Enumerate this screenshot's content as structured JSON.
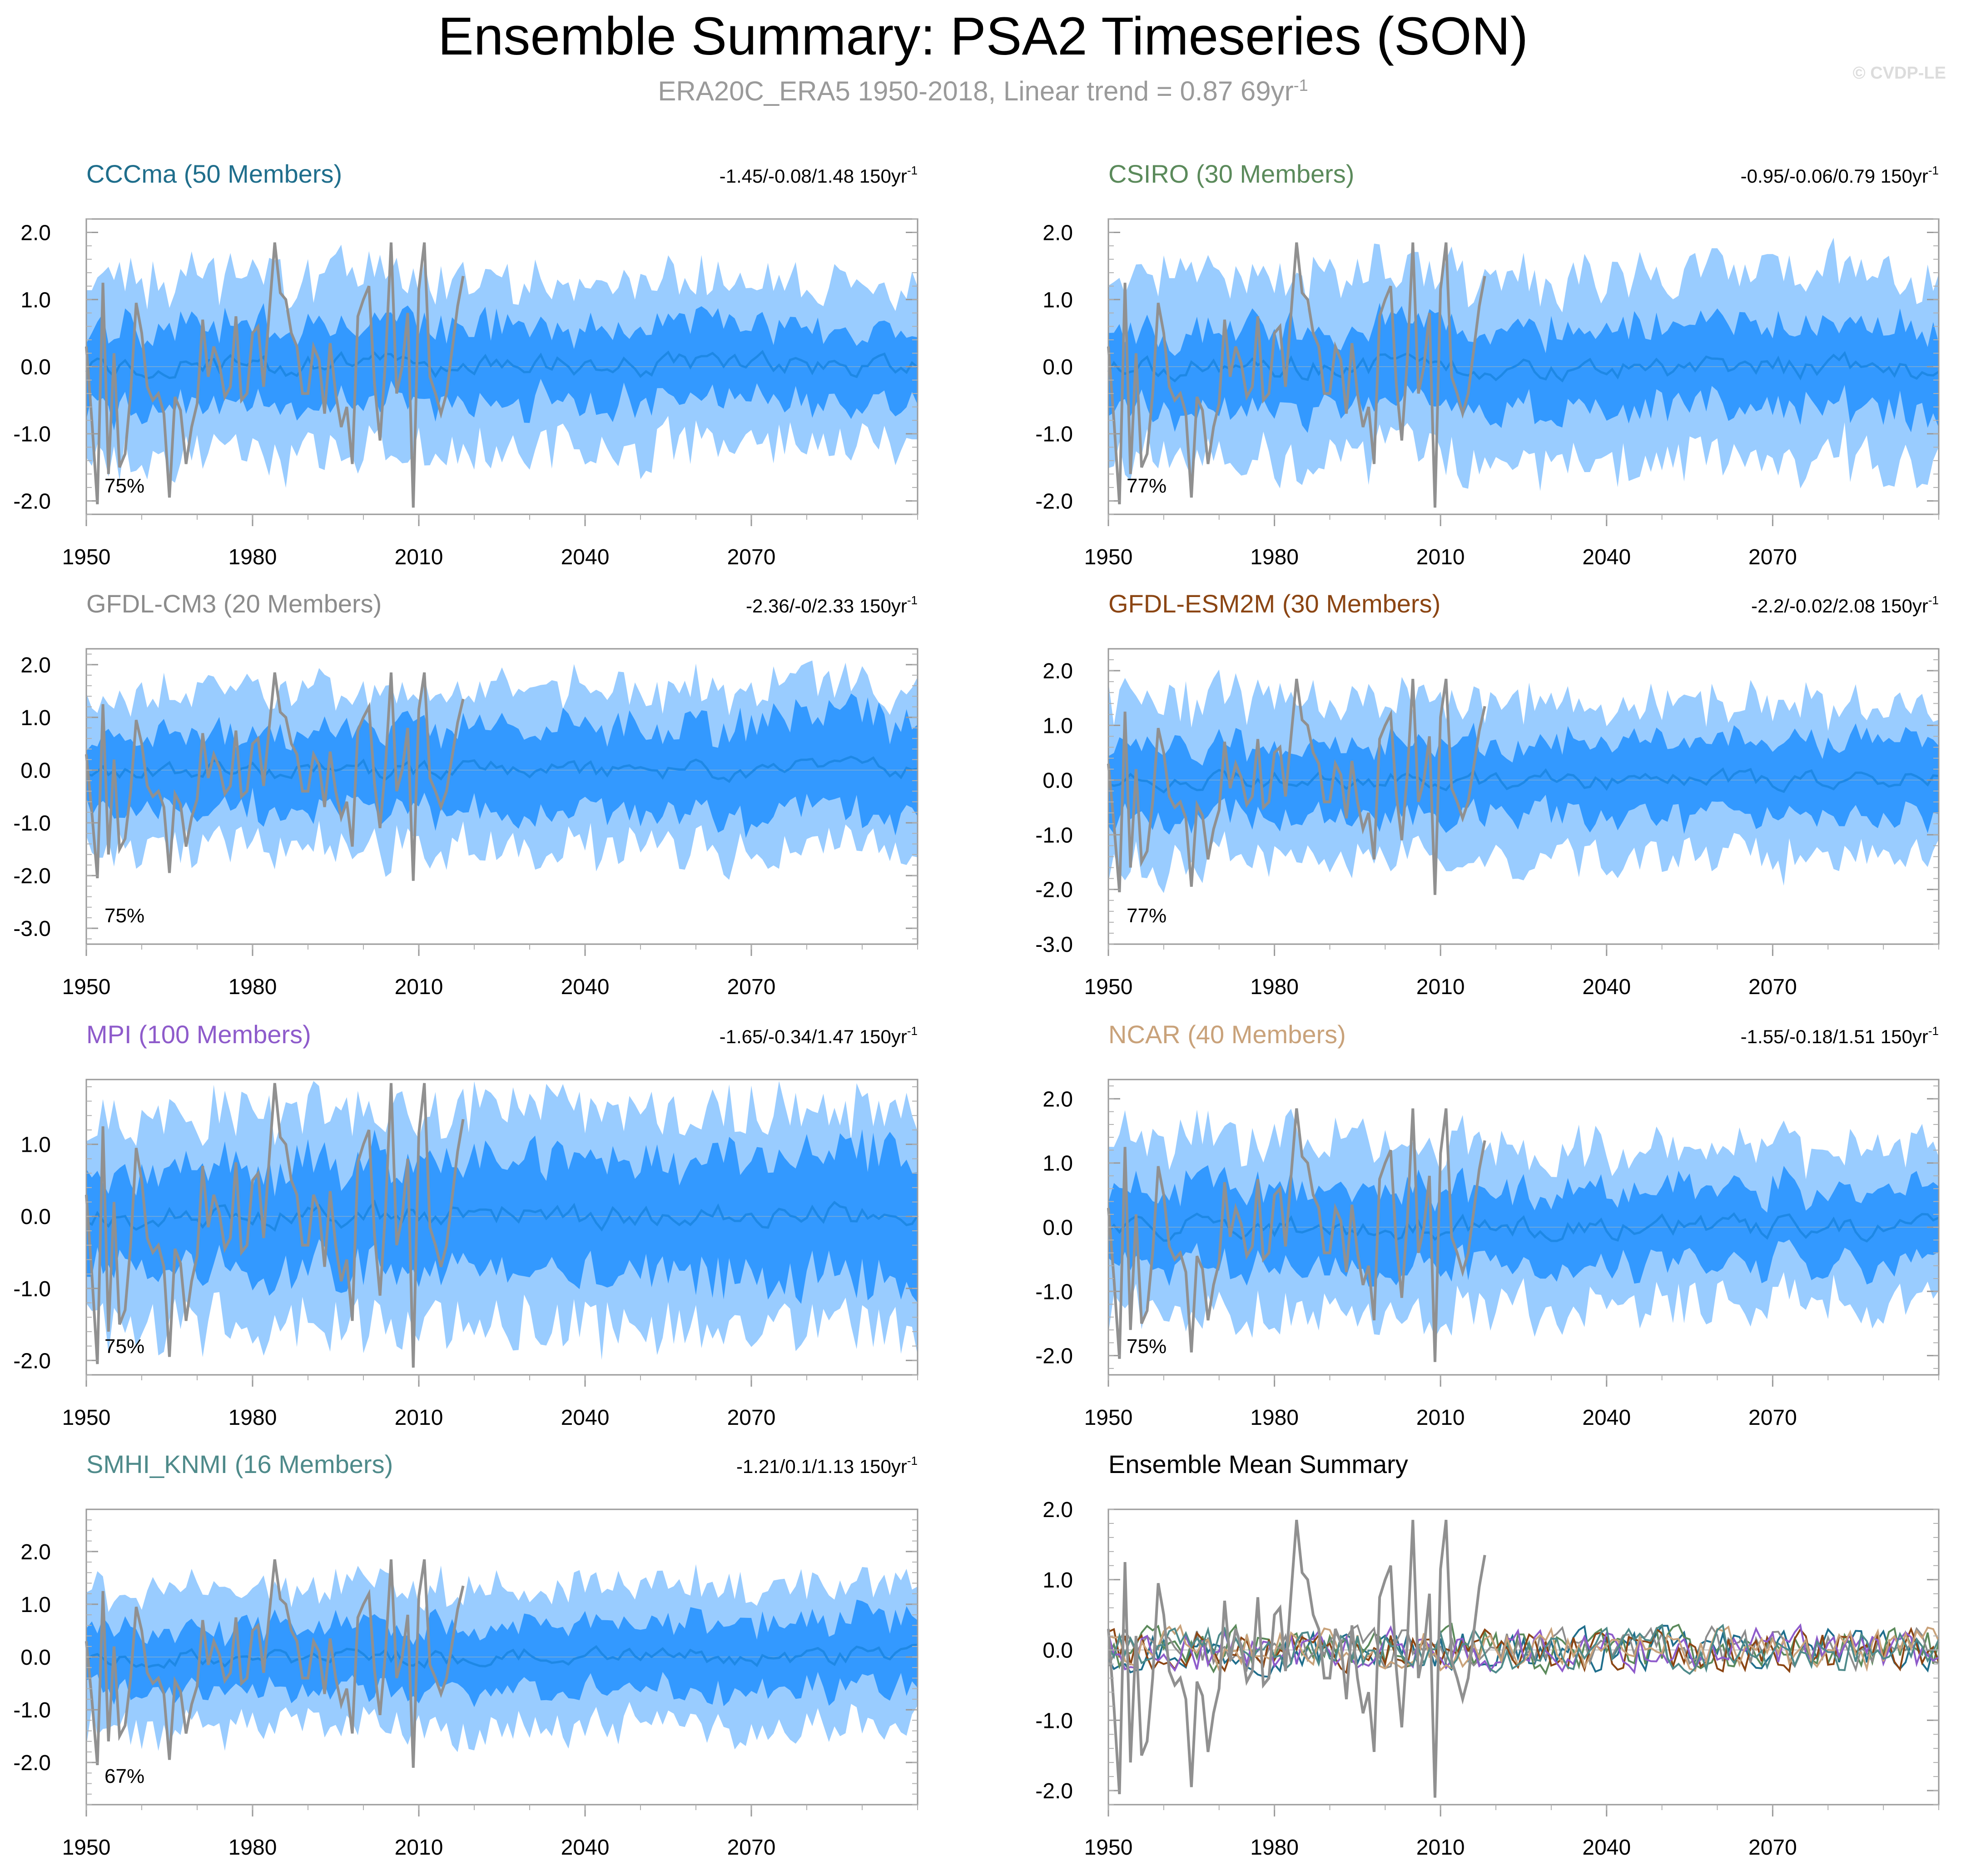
{
  "header": {
    "title": "Ensemble Summary: PSA2 Timeseries (SON)",
    "subtitle_main": "ERA20C_ERA5 1950-2018, Linear trend = 0.87 69yr",
    "subtitle_exp": "-1",
    "watermark": "© CVDP-LE"
  },
  "colors": {
    "outer_band": "#99CCFF",
    "inner_band": "#3399FF",
    "ensemble_mean": "#1E88E5",
    "observations": "#909090"
  },
  "chart_data": [
    {
      "id": "cccma",
      "type": "area",
      "title": "CCCma (50 Members)",
      "title_color": "#1F6E8C",
      "trend": "-1.45/-0.08/1.48 150yr",
      "trend_exp": "-1",
      "percent": "75%",
      "yrange": [
        -2.2,
        2.2
      ],
      "yticks": [
        -2,
        -1,
        0,
        1,
        2
      ],
      "ytick_labels": [
        "-2.0",
        "-1.0",
        "0.0",
        "1.0",
        "2.0"
      ],
      "xrange": [
        1950,
        2100
      ],
      "xticks": [
        1950,
        1980,
        2010,
        2040,
        2070
      ],
      "band_outer": [
        1.35,
        1.1
      ],
      "band_inner": [
        0.65,
        0.55
      ],
      "seed": 11
    },
    {
      "id": "csiro",
      "type": "area",
      "title": "CSIRO (30 Members)",
      "title_color": "#5B8A5B",
      "trend": "-0.95/-0.06/0.79 150yr",
      "trend_exp": "-1",
      "percent": "77%",
      "yrange": [
        -2.2,
        2.2
      ],
      "yticks": [
        -2,
        -1,
        0,
        1,
        2
      ],
      "ytick_labels": [
        "-2.0",
        "-1.0",
        "0.0",
        "1.0",
        "2.0"
      ],
      "xrange": [
        1950,
        2100
      ],
      "xticks": [
        1950,
        1980,
        2010,
        2040,
        2070
      ],
      "band_outer": [
        1.35,
        1.35
      ],
      "band_inner": [
        0.6,
        0.65
      ],
      "seed": 23
    },
    {
      "id": "gfdl-cm3",
      "type": "area",
      "title": "GFDL-CM3 (20 Members)",
      "title_color": "#8C8C8C",
      "trend": "-2.36/-0/2.33 150yr",
      "trend_exp": "-1",
      "percent": "75%",
      "yrange": [
        -3.3,
        2.3
      ],
      "yticks": [
        -3,
        -2,
        -1,
        0,
        1,
        2
      ],
      "ytick_labels": [
        "-3.0",
        "-2.0",
        "-1.0",
        "0.0",
        "1.0",
        "2.0"
      ],
      "xrange": [
        1950,
        2100
      ],
      "xticks": [
        1950,
        1980,
        2010,
        2040,
        2070
      ],
      "band_outer": [
        1.4,
        1.5
      ],
      "band_inner": [
        0.7,
        1.0
      ],
      "seed": 37
    },
    {
      "id": "gfdl-esm2m",
      "type": "area",
      "title": "GFDL-ESM2M (30 Members)",
      "title_color": "#8B4513",
      "trend": "-2.2/-0.02/2.08 150yr",
      "trend_exp": "-1",
      "percent": "77%",
      "yrange": [
        -3.0,
        2.4
      ],
      "yticks": [
        -3,
        -2,
        -1,
        0,
        1,
        2
      ],
      "ytick_labels": [
        "-3.0",
        "-2.0",
        "-1.0",
        "0.0",
        "1.0",
        "2.0"
      ],
      "xrange": [
        1950,
        2100
      ],
      "xticks": [
        1950,
        1980,
        2010,
        2040,
        2070
      ],
      "band_outer": [
        1.45,
        1.3
      ],
      "band_inner": [
        0.7,
        0.7
      ],
      "seed": 41
    },
    {
      "id": "mpi",
      "type": "area",
      "title": "MPI (100 Members)",
      "title_color": "#8E5BCB",
      "trend": "-1.65/-0.34/1.47 150yr",
      "trend_exp": "-1",
      "percent": "75%",
      "yrange": [
        -2.2,
        1.9
      ],
      "yticks": [
        -2,
        -1,
        0,
        1
      ],
      "ytick_labels": [
        "-2.0",
        "-1.0",
        "0.0",
        "1.0"
      ],
      "xrange": [
        1950,
        2100
      ],
      "xticks": [
        1950,
        1980,
        2010,
        2040,
        2070
      ],
      "band_outer": [
        1.4,
        1.5
      ],
      "band_inner": [
        0.7,
        0.95
      ],
      "seed": 53
    },
    {
      "id": "ncar",
      "type": "area",
      "title": "NCAR (40 Members)",
      "title_color": "#C9A27A",
      "trend": "-1.55/-0.18/1.51 150yr",
      "trend_exp": "-1",
      "percent": "75%",
      "yrange": [
        -2.3,
        2.3
      ],
      "yticks": [
        -2,
        -1,
        0,
        1,
        2
      ],
      "ytick_labels": [
        "-2.0",
        "-1.0",
        "0.0",
        "1.0",
        "2.0"
      ],
      "xrange": [
        1950,
        2100
      ],
      "xticks": [
        1950,
        1980,
        2010,
        2040,
        2070
      ],
      "band_outer": [
        1.4,
        1.1
      ],
      "band_inner": [
        0.65,
        0.6
      ],
      "seed": 67
    },
    {
      "id": "smhi-knmi",
      "type": "area",
      "title": "SMHI_KNMI (16 Members)",
      "title_color": "#4E8A8A",
      "trend": "-1.21/0.1/1.13 150yr",
      "trend_exp": "-1",
      "percent": "67%",
      "yrange": [
        -2.8,
        2.8
      ],
      "yticks": [
        -2,
        -1,
        0,
        1,
        2
      ],
      "ytick_labels": [
        "-2.0",
        "-1.0",
        "0.0",
        "1.0",
        "2.0"
      ],
      "xrange": [
        1950,
        2100
      ],
      "xticks": [
        1950,
        1980,
        2010,
        2040,
        2070
      ],
      "band_outer": [
        1.3,
        1.3
      ],
      "band_inner": [
        0.6,
        0.7
      ],
      "seed": 79
    },
    {
      "id": "ensemble-mean",
      "type": "line",
      "title": "Ensemble Mean Summary",
      "title_color": "#000000",
      "trend": "",
      "trend_exp": "",
      "percent": "",
      "yrange": [
        -2.2,
        2.0
      ],
      "yticks": [
        -2,
        -1,
        0,
        1,
        2
      ],
      "ytick_labels": [
        "-2.0",
        "-1.0",
        "0.0",
        "1.0",
        "2.0"
      ],
      "xrange": [
        1950,
        2100
      ],
      "xticks": [
        1950,
        1980,
        2010,
        2040,
        2070
      ],
      "series_colors": [
        "#1F6E8C",
        "#5B8A5B",
        "#8C8C8C",
        "#8B4513",
        "#8E5BCB",
        "#C9A27A",
        "#4E8A8A"
      ],
      "seed": 97
    }
  ],
  "observations": {
    "name": "ERA20C_ERA5",
    "years": [
      1950,
      1951,
      1952,
      1953,
      1954,
      1955,
      1956,
      1957,
      1958,
      1959,
      1960,
      1961,
      1962,
      1963,
      1964,
      1965,
      1966,
      1967,
      1968,
      1969,
      1970,
      1971,
      1972,
      1973,
      1974,
      1975,
      1976,
      1977,
      1978,
      1979,
      1980,
      1981,
      1982,
      1983,
      1984,
      1985,
      1986,
      1987,
      1988,
      1989,
      1990,
      1991,
      1992,
      1993,
      1994,
      1995,
      1996,
      1997,
      1998,
      1999,
      2000,
      2001,
      2002,
      2003,
      2004,
      2005,
      2006,
      2007,
      2008,
      2009,
      2010,
      2011,
      2012,
      2013,
      2014,
      2015,
      2016,
      2017,
      2018
    ],
    "values": [
      0.3,
      -0.8,
      -2.05,
      1.25,
      -1.6,
      0.2,
      -1.5,
      -1.3,
      -0.4,
      0.95,
      0.5,
      -0.3,
      -0.5,
      -0.4,
      -0.7,
      -1.95,
      -0.45,
      -0.65,
      -1.45,
      -0.9,
      -0.55,
      0.7,
      -0.15,
      0.3,
      0.05,
      -0.45,
      -0.3,
      0.75,
      -0.5,
      -0.4,
      0.5,
      0.6,
      -0.3,
      0.8,
      1.85,
      1.1,
      1.0,
      0.5,
      0.3,
      -0.4,
      -0.4,
      0.3,
      0.1,
      -0.7,
      0.35,
      -0.4,
      -0.9,
      -0.6,
      -1.45,
      0.75,
      1.0,
      1.2,
      -0.25,
      -1.1,
      0.1,
      1.85,
      -0.4,
      0.0,
      0.8,
      -2.1,
      1.15,
      1.85,
      -0.15,
      -0.4,
      -0.7,
      -0.4,
      0.25,
      0.9,
      1.35
    ]
  }
}
